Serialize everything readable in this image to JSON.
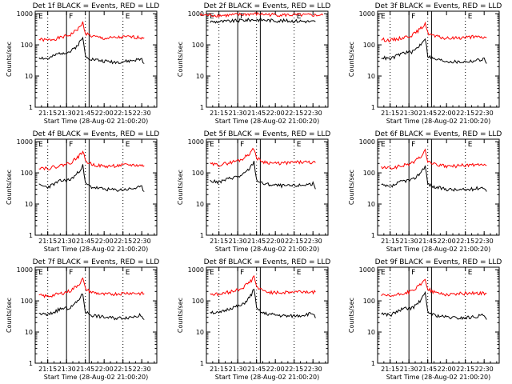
{
  "chart_data": [
    {
      "type": "line",
      "title": "Det 1f BLACK = Events, RED = LLD",
      "ylabel": "Counts/sec",
      "xlabel": "Start Time (28-Aug-02 21:00:20)",
      "x_ticks": [
        "21:15",
        "21:30",
        "21:45",
        "22:00",
        "22:15",
        "22:30"
      ],
      "y_ticks": [
        "1",
        "10",
        "100",
        "1000"
      ],
      "ylim": [
        1,
        1200
      ],
      "ylog": true,
      "markers": [
        "E",
        "F",
        "E"
      ],
      "series": [
        {
          "color": "#ff0000",
          "x": [
            "21:08",
            "21:15",
            "21:25",
            "21:33",
            "21:38",
            "21:41",
            "21:43",
            "21:45",
            "21:50",
            "22:00",
            "22:10",
            "22:20",
            "22:32"
          ],
          "y": [
            150,
            140,
            170,
            210,
            300,
            380,
            520,
            240,
            190,
            160,
            170,
            180,
            170
          ]
        },
        {
          "color": "#000000",
          "x": [
            "21:08",
            "21:15",
            "21:25",
            "21:33",
            "21:38",
            "21:41",
            "21:43",
            "21:45",
            "21:50",
            "22:00",
            "22:10",
            "22:20",
            "22:30",
            "22:32"
          ],
          "y": [
            40,
            35,
            55,
            60,
            90,
            130,
            170,
            45,
            35,
            30,
            28,
            30,
            35,
            25
          ]
        }
      ]
    },
    {
      "type": "line",
      "title": "Det 2f BLACK = Events, RED = LLD",
      "ylabel": "Counts/sec",
      "xlabel": "Start Time (28-Aug-02 21:00:20)",
      "x_ticks": [
        "21:15",
        "21:30",
        "21:45",
        "22:00",
        "22:15",
        "22:30"
      ],
      "y_ticks": [
        "1",
        "10",
        "100",
        "1000"
      ],
      "ylim": [
        1,
        1200
      ],
      "ylog": true,
      "markers": [
        "E",
        "F",
        "E"
      ],
      "series": [
        {
          "color": "#ff0000",
          "x": [
            "21:00",
            "21:20",
            "21:35",
            "21:45",
            "22:00",
            "22:20",
            "22:38"
          ],
          "y": [
            900,
            880,
            950,
            980,
            920,
            900,
            900
          ]
        },
        {
          "color": "#000000",
          "x": [
            "21:08",
            "21:20",
            "21:35",
            "21:45",
            "22:00",
            "22:20",
            "22:32"
          ],
          "y": [
            550,
            560,
            620,
            640,
            600,
            580,
            550
          ]
        }
      ]
    },
    {
      "type": "line",
      "title": "Det 3f BLACK = Events, RED = LLD",
      "ylabel": "Counts/sec",
      "xlabel": "Start Time (28-Aug-02 21:00:20)",
      "x_ticks": [
        "21:15",
        "21:30",
        "21:45",
        "22:00",
        "22:15",
        "22:30"
      ],
      "y_ticks": [
        "1",
        "10",
        "100",
        "1000"
      ],
      "ylim": [
        1,
        1200
      ],
      "ylog": true,
      "markers": [
        "E",
        "F",
        "E"
      ],
      "series": [
        {
          "color": "#ff0000",
          "x": [
            "21:08",
            "21:15",
            "21:25",
            "21:33",
            "21:38",
            "21:41",
            "21:43",
            "21:45",
            "21:50",
            "22:00",
            "22:10",
            "22:20",
            "22:32"
          ],
          "y": [
            150,
            140,
            170,
            210,
            300,
            380,
            520,
            240,
            190,
            160,
            170,
            180,
            170
          ]
        },
        {
          "color": "#000000",
          "x": [
            "21:08",
            "21:15",
            "21:25",
            "21:33",
            "21:38",
            "21:41",
            "21:43",
            "21:45",
            "21:50",
            "22:00",
            "22:10",
            "22:20",
            "22:30",
            "22:32"
          ],
          "y": [
            40,
            35,
            55,
            60,
            90,
            130,
            170,
            45,
            35,
            30,
            28,
            30,
            35,
            25
          ]
        }
      ]
    },
    {
      "type": "line",
      "title": "Det 4f BLACK = Events, RED = LLD",
      "ylabel": "Counts/sec",
      "xlabel": "Start Time (28-Aug-02 21:00:20)",
      "x_ticks": [
        "21:15",
        "21:30",
        "21:45",
        "22:00",
        "22:15",
        "22:30"
      ],
      "y_ticks": [
        "1",
        "10",
        "100",
        "1000"
      ],
      "ylim": [
        1,
        1200
      ],
      "ylog": true,
      "markers": [
        "E",
        "F",
        "E"
      ],
      "series": [
        {
          "color": "#ff0000",
          "x": [
            "21:08",
            "21:15",
            "21:25",
            "21:33",
            "21:38",
            "21:41",
            "21:43",
            "21:45",
            "21:50",
            "22:00",
            "22:10",
            "22:20",
            "22:32"
          ],
          "y": [
            150,
            140,
            170,
            210,
            300,
            380,
            520,
            240,
            190,
            160,
            170,
            180,
            170
          ]
        },
        {
          "color": "#000000",
          "x": [
            "21:08",
            "21:15",
            "21:25",
            "21:33",
            "21:38",
            "21:41",
            "21:43",
            "21:45",
            "21:50",
            "22:00",
            "22:10",
            "22:20",
            "22:30",
            "22:32"
          ],
          "y": [
            40,
            35,
            55,
            60,
            90,
            130,
            170,
            45,
            35,
            30,
            28,
            30,
            35,
            25
          ]
        }
      ]
    },
    {
      "type": "line",
      "title": "Det 5f BLACK = Events, RED = LLD",
      "ylabel": "Counts/sec",
      "xlabel": "Start Time (28-Aug-02 21:00:20)",
      "x_ticks": [
        "21:15",
        "21:30",
        "21:45",
        "22:00",
        "22:15",
        "22:30"
      ],
      "y_ticks": [
        "1",
        "10",
        "100",
        "1000"
      ],
      "ylim": [
        1,
        1200
      ],
      "ylog": true,
      "markers": [
        "E",
        "F",
        "E"
      ],
      "series": [
        {
          "color": "#ff0000",
          "x": [
            "21:08",
            "21:15",
            "21:25",
            "21:33",
            "21:38",
            "21:41",
            "21:43",
            "21:45",
            "21:50",
            "22:00",
            "22:10",
            "22:20",
            "22:32"
          ],
          "y": [
            190,
            180,
            220,
            270,
            380,
            480,
            620,
            300,
            230,
            200,
            210,
            220,
            210
          ]
        },
        {
          "color": "#000000",
          "x": [
            "21:08",
            "21:15",
            "21:25",
            "21:33",
            "21:38",
            "21:41",
            "21:43",
            "21:45",
            "21:50",
            "22:00",
            "22:10",
            "22:20",
            "22:30",
            "22:32"
          ],
          "y": [
            55,
            50,
            70,
            80,
            120,
            170,
            230,
            60,
            45,
            40,
            38,
            40,
            45,
            30
          ]
        }
      ]
    },
    {
      "type": "line",
      "title": "Det 6f BLACK = Events, RED = LLD",
      "ylabel": "Counts/sec",
      "xlabel": "Start Time (28-Aug-02 21:00:20)",
      "x_ticks": [
        "21:15",
        "21:30",
        "21:45",
        "22:00",
        "22:15",
        "22:30"
      ],
      "y_ticks": [
        "1",
        "10",
        "100",
        "1000"
      ],
      "ylim": [
        1,
        1200
      ],
      "ylog": true,
      "markers": [
        "E",
        "F",
        "E"
      ],
      "series": [
        {
          "color": "#ff0000",
          "x": [
            "21:08",
            "21:15",
            "21:25",
            "21:33",
            "21:38",
            "21:41",
            "21:43",
            "21:45",
            "21:50",
            "22:00",
            "22:10",
            "22:20",
            "22:32"
          ],
          "y": [
            150,
            140,
            170,
            210,
            300,
            380,
            520,
            240,
            190,
            160,
            170,
            180,
            170
          ]
        },
        {
          "color": "#000000",
          "x": [
            "21:08",
            "21:15",
            "21:25",
            "21:33",
            "21:38",
            "21:41",
            "21:43",
            "21:45",
            "21:50",
            "22:00",
            "22:10",
            "22:20",
            "22:30",
            "22:32"
          ],
          "y": [
            40,
            35,
            55,
            60,
            90,
            130,
            170,
            45,
            35,
            30,
            28,
            30,
            35,
            25
          ]
        }
      ]
    },
    {
      "type": "line",
      "title": "Det 7f BLACK = Events, RED = LLD",
      "ylabel": "Counts/sec",
      "xlabel": "Start Time (28-Aug-02 21:00:20)",
      "x_ticks": [
        "21:15",
        "21:30",
        "21:45",
        "22:00",
        "22:15",
        "22:30"
      ],
      "y_ticks": [
        "1",
        "10",
        "100",
        "1000"
      ],
      "ylim": [
        1,
        1200
      ],
      "ylog": true,
      "markers": [
        "E",
        "F",
        "E"
      ],
      "series": [
        {
          "color": "#ff0000",
          "x": [
            "21:08",
            "21:15",
            "21:25",
            "21:33",
            "21:38",
            "21:41",
            "21:43",
            "21:45",
            "21:50",
            "22:00",
            "22:10",
            "22:20",
            "22:32"
          ],
          "y": [
            150,
            140,
            170,
            210,
            300,
            380,
            520,
            240,
            190,
            160,
            170,
            180,
            170
          ]
        },
        {
          "color": "#000000",
          "x": [
            "21:08",
            "21:15",
            "21:25",
            "21:33",
            "21:38",
            "21:41",
            "21:43",
            "21:45",
            "21:50",
            "22:00",
            "22:10",
            "22:20",
            "22:30",
            "22:32"
          ],
          "y": [
            40,
            35,
            55,
            60,
            90,
            130,
            170,
            45,
            35,
            30,
            28,
            30,
            35,
            25
          ]
        }
      ]
    },
    {
      "type": "line",
      "title": "Det 8f BLACK = Events, RED = LLD",
      "ylabel": "Counts/sec",
      "xlabel": "Start Time (28-Aug-02 21:00:20)",
      "x_ticks": [
        "21:15",
        "21:30",
        "21:45",
        "22:00",
        "22:15",
        "22:30"
      ],
      "y_ticks": [
        "1",
        "10",
        "100",
        "1000"
      ],
      "ylim": [
        1,
        1200
      ],
      "ylog": true,
      "markers": [
        "E",
        "F",
        "E"
      ],
      "series": [
        {
          "color": "#ff0000",
          "x": [
            "21:08",
            "21:15",
            "21:25",
            "21:33",
            "21:38",
            "21:41",
            "21:43",
            "21:45",
            "21:50",
            "22:00",
            "22:10",
            "22:20",
            "22:32"
          ],
          "y": [
            170,
            160,
            200,
            250,
            360,
            460,
            640,
            280,
            210,
            180,
            190,
            200,
            190
          ]
        },
        {
          "color": "#000000",
          "x": [
            "21:08",
            "21:15",
            "21:25",
            "21:33",
            "21:38",
            "21:41",
            "21:43",
            "21:45",
            "21:50",
            "22:00",
            "22:10",
            "22:20",
            "22:30",
            "22:32"
          ],
          "y": [
            45,
            40,
            60,
            70,
            110,
            160,
            260,
            55,
            40,
            35,
            32,
            34,
            40,
            28
          ]
        }
      ]
    },
    {
      "type": "line",
      "title": "Det 9f BLACK = Events, RED = LLD",
      "ylabel": "Counts/sec",
      "xlabel": "Start Time (28-Aug-02 21:00:20)",
      "x_ticks": [
        "21:15",
        "21:30",
        "21:45",
        "22:00",
        "22:15",
        "22:30"
      ],
      "y_ticks": [
        "1",
        "10",
        "100",
        "1000"
      ],
      "ylim": [
        1,
        1200
      ],
      "ylog": true,
      "markers": [
        "E",
        "F",
        "E"
      ],
      "series": [
        {
          "color": "#ff0000",
          "x": [
            "21:08",
            "21:15",
            "21:25",
            "21:33",
            "21:38",
            "21:41",
            "21:43",
            "21:45",
            "21:50",
            "22:00",
            "22:10",
            "22:20",
            "22:32"
          ],
          "y": [
            150,
            140,
            170,
            210,
            300,
            380,
            520,
            240,
            190,
            160,
            170,
            180,
            170
          ]
        },
        {
          "color": "#000000",
          "x": [
            "21:08",
            "21:15",
            "21:25",
            "21:33",
            "21:38",
            "21:41",
            "21:43",
            "21:45",
            "21:50",
            "22:00",
            "22:10",
            "22:20",
            "22:30",
            "22:32"
          ],
          "y": [
            40,
            35,
            55,
            60,
            90,
            130,
            170,
            45,
            35,
            30,
            28,
            30,
            35,
            25
          ]
        }
      ]
    }
  ]
}
